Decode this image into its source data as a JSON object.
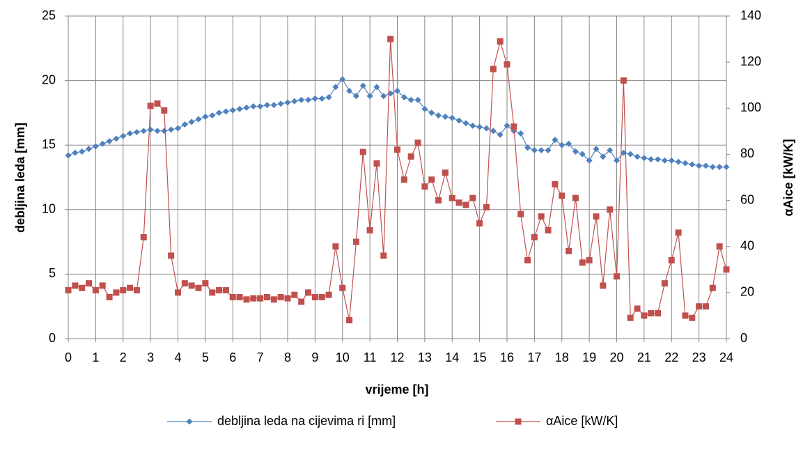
{
  "chart_data": {
    "type": "line",
    "x_label": "vrijeme [h]",
    "y_label": "debljina leda [mm]",
    "y2_label": "αAice [kW/K]",
    "x": [
      0,
      0.25,
      0.5,
      0.75,
      1,
      1.25,
      1.5,
      1.75,
      2,
      2.25,
      2.5,
      2.75,
      3,
      3.25,
      3.5,
      3.75,
      4,
      4.25,
      4.5,
      4.75,
      5,
      5.25,
      5.5,
      5.75,
      6,
      6.25,
      6.5,
      6.75,
      7,
      7.25,
      7.5,
      7.75,
      8,
      8.25,
      8.5,
      8.75,
      9,
      9.25,
      9.5,
      9.75,
      10,
      10.25,
      10.5,
      10.75,
      11,
      11.25,
      11.5,
      11.75,
      12,
      12.25,
      12.5,
      12.75,
      13,
      13.25,
      13.5,
      13.75,
      14,
      14.25,
      14.5,
      14.75,
      15,
      15.25,
      15.5,
      15.75,
      16,
      16.25,
      16.5,
      16.75,
      17,
      17.25,
      17.5,
      17.75,
      18,
      18.25,
      18.5,
      18.75,
      19,
      19.25,
      19.5,
      19.75,
      20,
      20.25,
      20.5,
      20.75,
      21,
      21.25,
      21.5,
      21.75,
      22,
      22.25,
      22.5,
      22.75,
      23,
      23.25,
      23.5,
      23.75,
      24
    ],
    "series": [
      {
        "name": "debljina leda na cijevima ri [mm]",
        "color": "#4f81bd",
        "marker": "diamond",
        "values": [
          14.2,
          14.4,
          14.5,
          14.7,
          14.9,
          15.1,
          15.3,
          15.5,
          15.7,
          15.9,
          16.0,
          16.1,
          16.2,
          16.1,
          16.1,
          16.2,
          16.3,
          16.6,
          16.8,
          17.0,
          17.2,
          17.3,
          17.5,
          17.6,
          17.7,
          17.8,
          17.9,
          18.0,
          18.0,
          18.1,
          18.1,
          18.2,
          18.3,
          18.4,
          18.5,
          18.5,
          18.6,
          18.6,
          18.7,
          19.5,
          20.1,
          19.2,
          18.8,
          19.6,
          18.8,
          19.5,
          18.8,
          19.0,
          19.2,
          18.7,
          18.5,
          18.5,
          17.8,
          17.5,
          17.3,
          17.2,
          17.1,
          16.9,
          16.7,
          16.5,
          16.4,
          16.3,
          16.1,
          15.8,
          16.5,
          16.1,
          15.9,
          14.8,
          14.6,
          14.6,
          14.6,
          15.4,
          15.0,
          15.1,
          14.5,
          14.3,
          13.8,
          14.7,
          14.1,
          14.6,
          13.8,
          14.4,
          14.3,
          14.1,
          14.0,
          13.9,
          13.9,
          13.8,
          13.8,
          13.7,
          13.6,
          13.5,
          13.4,
          13.4,
          13.3,
          13.3,
          13.3
        ]
      },
      {
        "name": "αAice [kW/K]",
        "color": "#c0504d",
        "marker": "square",
        "axis": "y2",
        "values": [
          21,
          23,
          22,
          24,
          21,
          23,
          18,
          20,
          21,
          22,
          21,
          44,
          101,
          102,
          99,
          36,
          20,
          24,
          23,
          22,
          24,
          20,
          21,
          21,
          18,
          18,
          17,
          17.5,
          17.5,
          18,
          17,
          18,
          17.5,
          19,
          16,
          20,
          18,
          18,
          19,
          40,
          22,
          8,
          42,
          81,
          47,
          76,
          36,
          130,
          82,
          69,
          79,
          85,
          66,
          69,
          60,
          72,
          61,
          59,
          58,
          61,
          50,
          57,
          117,
          129,
          119,
          92,
          54,
          34,
          44,
          53,
          47,
          67,
          62,
          38,
          61,
          33,
          34,
          53,
          23,
          56,
          27,
          112,
          9,
          13,
          10,
          11,
          11,
          24,
          34,
          46,
          10,
          9,
          14,
          14,
          22,
          40,
          30
        ]
      }
    ],
    "xlim": [
      0,
      24
    ],
    "xticks": [
      0,
      1,
      2,
      3,
      4,
      5,
      6,
      7,
      8,
      9,
      10,
      11,
      12,
      13,
      14,
      15,
      16,
      17,
      18,
      19,
      20,
      21,
      22,
      23,
      24
    ],
    "ylim": [
      0,
      25
    ],
    "yticks": [
      0,
      5,
      10,
      15,
      20,
      25
    ],
    "y2lim": [
      0,
      140
    ],
    "y2ticks": [
      0,
      20,
      40,
      60,
      80,
      100,
      120,
      140
    ],
    "grid": true,
    "legend": "bottom"
  }
}
